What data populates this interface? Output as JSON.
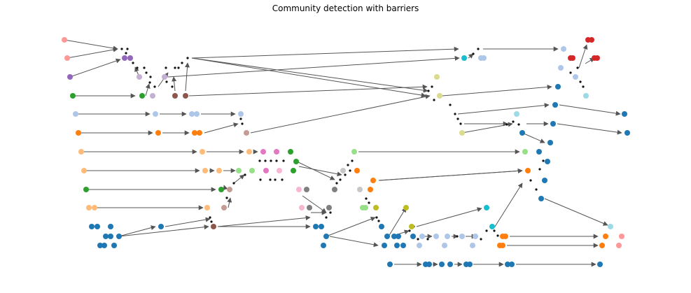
{
  "title": "Community detection with barriers",
  "palette": {
    "light_red": "#ff9896",
    "purple": "#9467bd",
    "green": "#2ca02c",
    "light_blue": "#aec7e8",
    "orange": "#ff7f0e",
    "light_orange": "#ffbb78",
    "blue": "#1f77b4",
    "brown": "#8c564b",
    "light_purple": "#c5b0d5",
    "rose": "#c49c94",
    "pink": "#e377c2",
    "light_pink": "#f7b6d2",
    "gray": "#7f7f7f",
    "light_gray": "#c7c7c7",
    "light_green": "#98df8a",
    "olive": "#bcbd22",
    "light_olive": "#dbdb8d",
    "cyan": "#17becf",
    "light_cyan": "#9edae5",
    "red": "#d62728",
    "edge": "#555555",
    "barrier": "#111111"
  }
}
